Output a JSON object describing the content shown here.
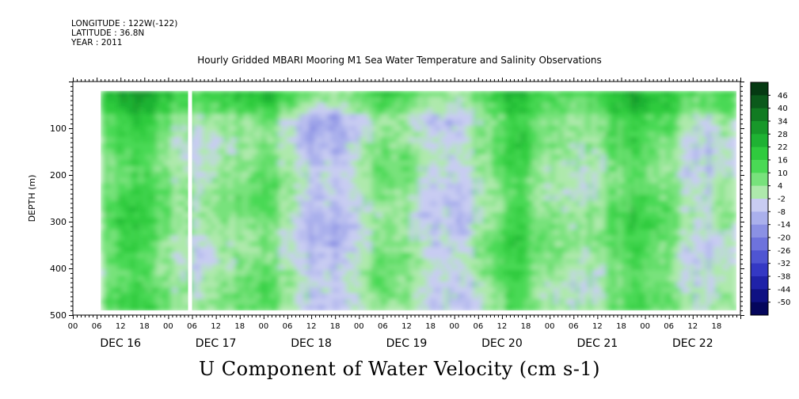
{
  "header": {
    "longitude": "LONGITUDE : 122W(-122)",
    "latitude": "LATITUDE : 36.8N",
    "year": "YEAR : 2011"
  },
  "title": "Hourly Gridded MBARI Mooring M1 Sea Water Temperature and Salinity Observations",
  "bottom_title": "U Component of Water Velocity (cm s-1)",
  "chart_data": {
    "type": "heatmap",
    "title": "Hourly Gridded MBARI Mooring M1 Sea Water Temperature and Salinity Observations",
    "xlabel": "",
    "ylabel": "DEPTH (m)",
    "variable": "U Component of Water Velocity (cm s-1)",
    "x_range_hours": [
      0,
      168
    ],
    "x_start": "DEC 16 00:00",
    "x_hour_ticks": [
      "00",
      "06",
      "12",
      "18",
      "00",
      "06",
      "12",
      "18",
      "00",
      "06",
      "12",
      "18",
      "00",
      "06",
      "12",
      "18",
      "00",
      "06",
      "12",
      "18",
      "00",
      "06",
      "12",
      "18",
      "00",
      "06",
      "12",
      "18"
    ],
    "day_labels": [
      "DEC 16",
      "DEC 17",
      "DEC 18",
      "DEC 19",
      "DEC 20",
      "DEC 21",
      "DEC 22"
    ],
    "ylim": [
      0,
      500
    ],
    "y_inverted": true,
    "y_ticks": [
      "100",
      "200",
      "300",
      "400",
      "500"
    ],
    "data_extent": {
      "start_hour": 7,
      "end_hour": 167,
      "min_depth_m": 20,
      "max_depth_m": 490
    },
    "missing_columns_hours": [
      [
        29,
        30
      ]
    ],
    "colorbar": {
      "levels": [
        "46",
        "40",
        "34",
        "28",
        "22",
        "16",
        "10",
        "4",
        "-2",
        "-8",
        "-14",
        "-20",
        "-26",
        "-32",
        "-38",
        "-44",
        "-50"
      ],
      "colors": [
        "#053a12",
        "#0b5a1b",
        "#117b22",
        "#18982a",
        "#1fb233",
        "#2fcb3e",
        "#4ad955",
        "#78e27c",
        "#aee9ac",
        "#c8ccf2",
        "#aab0ec",
        "#8b91e4",
        "#6e73dc",
        "#4f55d2",
        "#3438c4",
        "#1f22a8",
        "#0f1183",
        "#05065c"
      ]
    },
    "grid": false,
    "legend": "colorbar-right"
  }
}
